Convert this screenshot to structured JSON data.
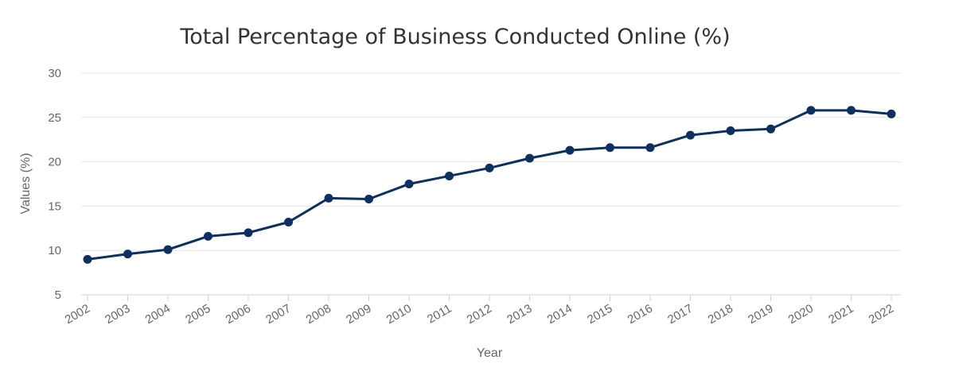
{
  "colors": {
    "series": "#0d3060"
  },
  "chart_data": {
    "type": "line",
    "title": "Total Percentage of Business Conducted Online (%)",
    "xlabel": "Year",
    "ylabel": "Values (%)",
    "ylim": [
      5,
      30
    ],
    "yticks": [
      "5",
      "10",
      "15",
      "20",
      "25",
      "30"
    ],
    "grid": true,
    "categories": [
      "2002",
      "2003",
      "2004",
      "2005",
      "2006",
      "2007",
      "2008",
      "2009",
      "2010",
      "2011",
      "2012",
      "2013",
      "2014",
      "2015",
      "2016",
      "2017",
      "2018",
      "2019",
      "2020",
      "2021",
      "2022"
    ],
    "series": [
      {
        "values": [
          9.0,
          9.6,
          10.1,
          11.6,
          12.0,
          13.2,
          15.9,
          15.8,
          17.5,
          18.4,
          19.3,
          20.4,
          21.3,
          21.6,
          21.6,
          23.0,
          23.5,
          23.7,
          25.8,
          25.8,
          25.4
        ]
      }
    ]
  }
}
